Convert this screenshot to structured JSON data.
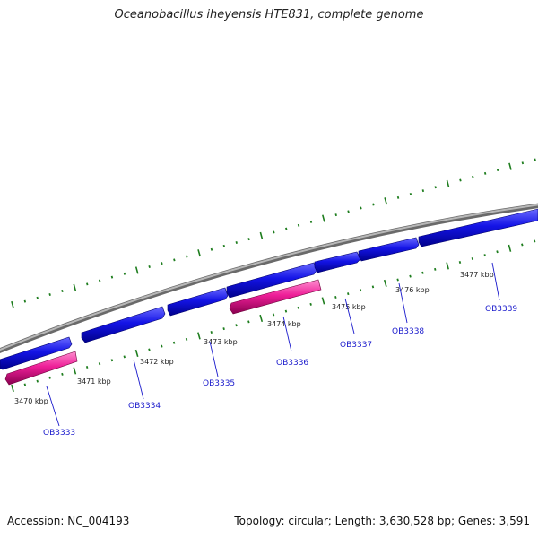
{
  "title": "Oceanobacillus iheyensis HTE831, complete genome",
  "accession": "Accession: NC_004193",
  "summary": "Topology: circular; Length: 3,630,528 bp; Genes: 3,591",
  "colors": {
    "backbone": "#8a8a8a",
    "forward_gene": "#1414e6",
    "reverse_gene": "#e61e96",
    "tick": "#1e7d1e",
    "gene_label": "#1a1acc"
  },
  "kbp_labels": [
    "3470 kbp",
    "3471 kbp",
    "3472 kbp",
    "3473 kbp",
    "3474 kbp",
    "3475 kbp",
    "3476 kbp",
    "3477 kbp"
  ],
  "genes": [
    {
      "name": "OB3333",
      "strand": "reverse"
    },
    {
      "name": "OB3334",
      "strand": "forward"
    },
    {
      "name": "OB3335",
      "strand": "forward"
    },
    {
      "name": "OB3336",
      "strand": "reverse"
    },
    {
      "name": "OB3337",
      "strand": "forward"
    },
    {
      "name": "OB3338",
      "strand": "forward"
    },
    {
      "name": "OB3339",
      "strand": "forward"
    }
  ]
}
